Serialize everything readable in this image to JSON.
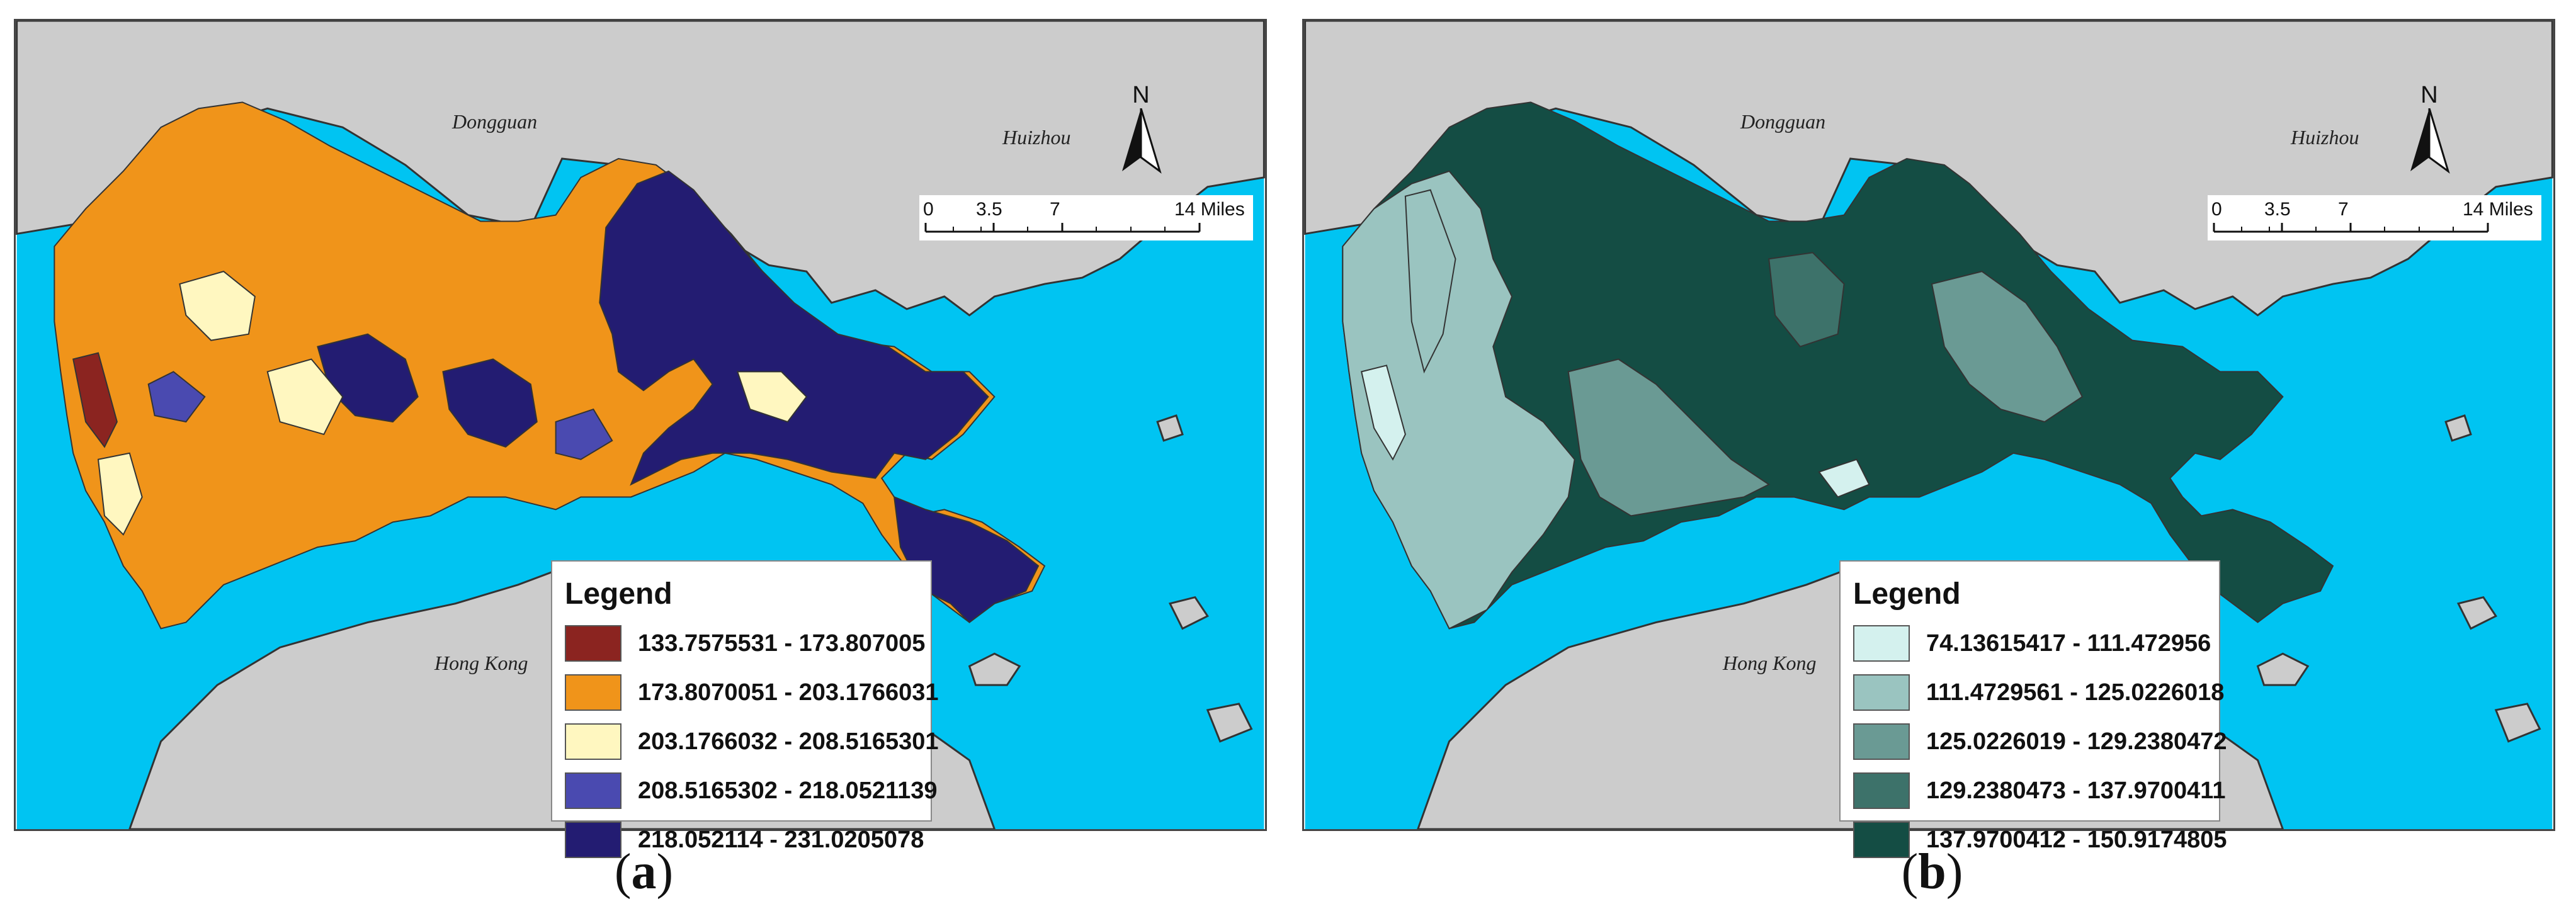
{
  "panels": [
    {
      "caption_letter": "a",
      "place_labels": {
        "dongguan": "Dongguan",
        "huizhou": "Huizhou",
        "hong_kong": "Hong Kong"
      },
      "north_label": "N",
      "scale": {
        "t0": "0",
        "t1": "3.5",
        "t2": "7",
        "t3": "14 Miles"
      },
      "legend_title": "Legend",
      "legend_items": [
        {
          "label": "133.7575531 - 173.807005",
          "color": "#8b2420"
        },
        {
          "label": "173.8070051 - 203.1766031",
          "color": "#f0941a"
        },
        {
          "label": "203.1766032 - 208.5165301",
          "color": "#fff7c0"
        },
        {
          "label": "208.5165302 - 218.0521139",
          "color": "#4a4ab0"
        },
        {
          "label": "218.052114 - 231.0205078",
          "color": "#231c72"
        }
      ]
    },
    {
      "caption_letter": "b",
      "place_labels": {
        "dongguan": "Dongguan",
        "huizhou": "Huizhou",
        "hong_kong": "Hong Kong"
      },
      "north_label": "N",
      "scale": {
        "t0": "0",
        "t1": "3.5",
        "t2": "7",
        "t3": "14 Miles"
      },
      "legend_title": "Legend",
      "legend_items": [
        {
          "label": "74.13615417 - 111.472956",
          "color": "#d4f1ee"
        },
        {
          "label": "111.4729561 - 125.0226018",
          "color": "#9ac4c0"
        },
        {
          "label": "125.0226019 - 129.2380472",
          "color": "#6a9a94"
        },
        {
          "label": "129.2380473 - 137.9700411",
          "color": "#3d726a"
        },
        {
          "label": "137.9700412 - 150.9174805",
          "color": "#144d44"
        }
      ]
    }
  ],
  "colors": {
    "sea": "#00c4f2",
    "land": "#cccccc",
    "outline": "#333333"
  }
}
